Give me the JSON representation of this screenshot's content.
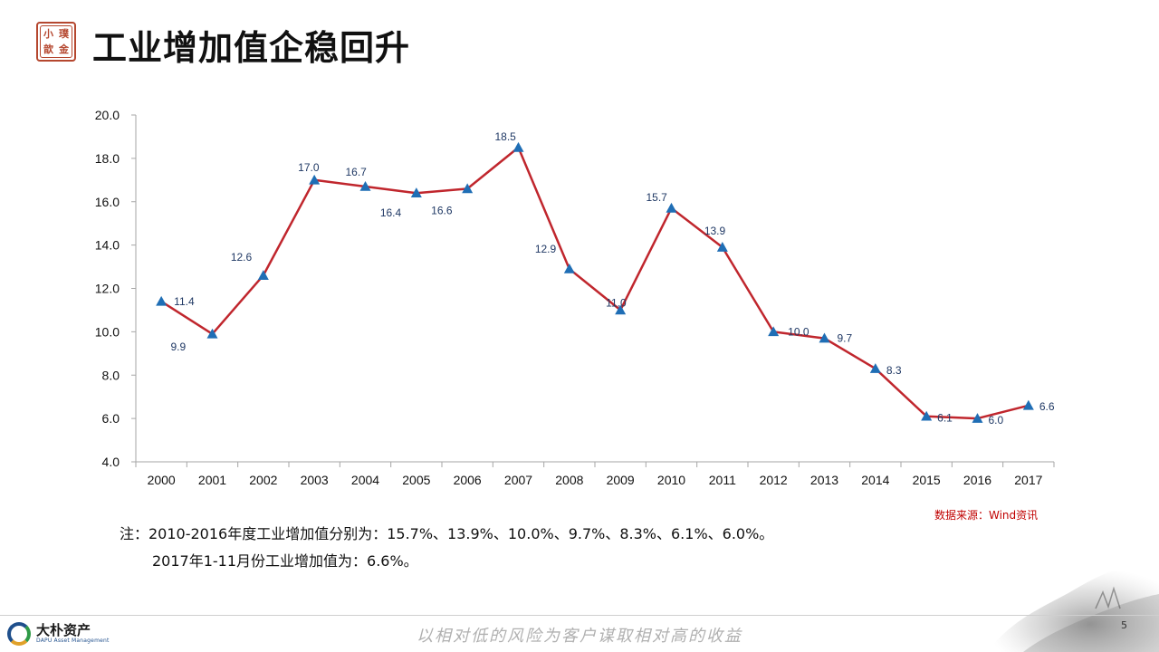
{
  "header": {
    "seal_chars": [
      "小",
      "璞",
      "歆",
      "金"
    ],
    "title": "工业增加值企稳回升"
  },
  "chart_data": {
    "type": "line",
    "x": [
      "2000",
      "2001",
      "2002",
      "2003",
      "2004",
      "2005",
      "2006",
      "2007",
      "2008",
      "2009",
      "2010",
      "2011",
      "2012",
      "2013",
      "2014",
      "2015",
      "2016",
      "2017"
    ],
    "series": [
      {
        "values": [
          11.4,
          9.9,
          12.6,
          17.0,
          16.7,
          16.4,
          16.6,
          18.5,
          12.9,
          11.0,
          15.7,
          13.9,
          10.0,
          9.7,
          8.3,
          6.1,
          6.0,
          6.6
        ],
        "labels": [
          "11.4",
          "9.9",
          "12.6",
          "17.0",
          "16.7",
          "16.4",
          "16.6",
          "18.5",
          "12.9",
          "11.0",
          "15.7",
          "13.9",
          "10.0",
          "9.7",
          "8.3",
          "6.1",
          "6.0",
          "6.6"
        ],
        "line_color": "#c0262d",
        "marker_color": "#1f6eb5",
        "marker": "triangle"
      }
    ],
    "ylim": [
      4.0,
      20.0
    ],
    "yticks": [
      "4.0",
      "6.0",
      "8.0",
      "10.0",
      "12.0",
      "14.0",
      "16.0",
      "18.0",
      "20.0"
    ],
    "grid": false,
    "title": "",
    "xlabel": "",
    "ylabel": ""
  },
  "source": "数据来源：Wind资讯",
  "note": {
    "line1": "注：2010-2016年度工业增加值分别为：15.7%、13.9%、10.0%、9.7%、8.3%、6.1%、6.0%。",
    "line2": "2017年1-11月份工业增加值为：6.6%。"
  },
  "footer": {
    "logo_cn": "大朴资产",
    "logo_en": "DAPU Asset Management",
    "slogan": "以相对低的风险为客户谋取相对高的收益",
    "page_number": "5"
  }
}
